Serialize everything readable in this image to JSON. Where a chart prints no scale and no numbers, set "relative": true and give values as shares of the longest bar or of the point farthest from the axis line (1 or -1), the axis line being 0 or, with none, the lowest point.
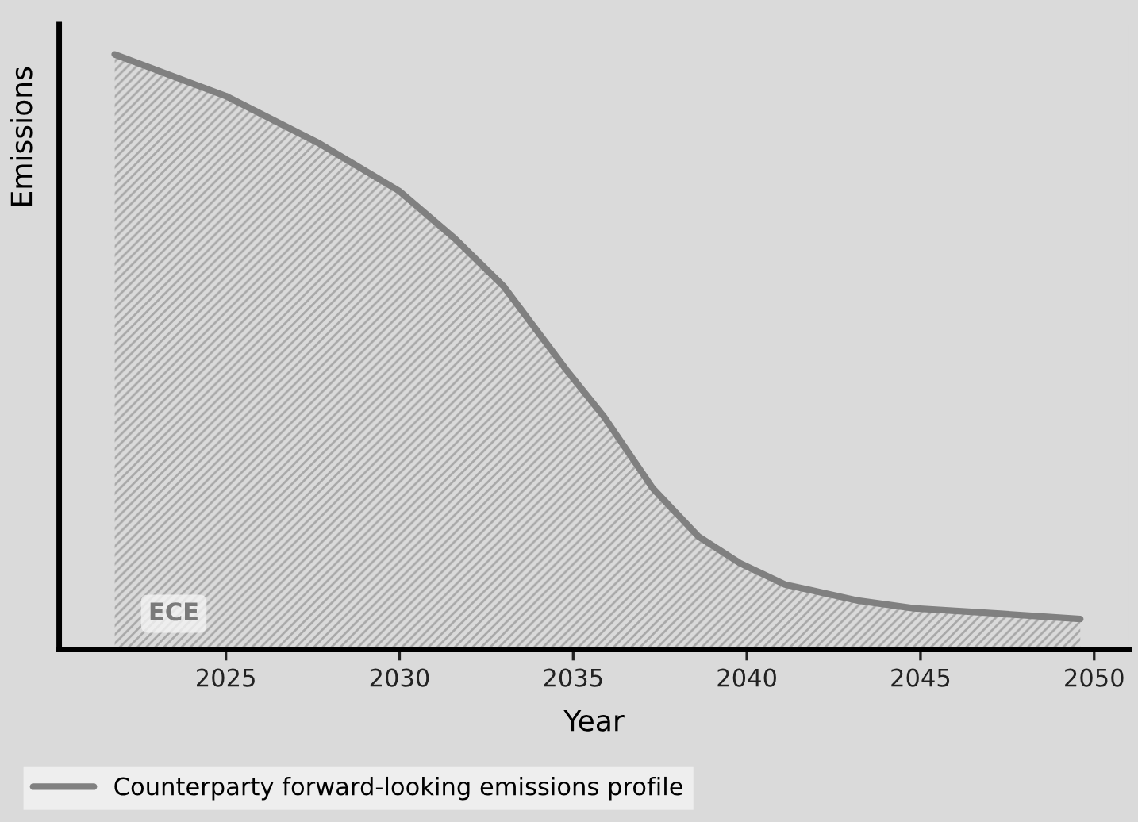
{
  "chart_data": {
    "type": "area",
    "relative": true,
    "xlabel": "Year",
    "ylabel": "Emissions",
    "x": [
      2021.8,
      2025,
      2027.7,
      2030,
      2031.6,
      2033,
      2034.8,
      2035.9,
      2037.3,
      2038.6,
      2039.8,
      2041.1,
      2043.2,
      2044.8,
      2047.3,
      2049.6
    ],
    "xlim": [
      2020.2,
      2051
    ],
    "xticks": [
      2025,
      2030,
      2035,
      2040,
      2045,
      2050
    ],
    "series": [
      {
        "name": "Counterparty forward-looking emissions profile",
        "color": "#808080",
        "values": [
          1.0,
          0.93,
          0.85,
          0.77,
          0.69,
          0.61,
          0.47,
          0.39,
          0.27,
          0.19,
          0.145,
          0.109,
          0.082,
          0.069,
          0.06,
          0.051
        ]
      }
    ],
    "annotations": [
      {
        "text": "ECE",
        "x": 2023.5,
        "y": 0.06
      }
    ],
    "legend": "bottom left",
    "grid": false
  }
}
